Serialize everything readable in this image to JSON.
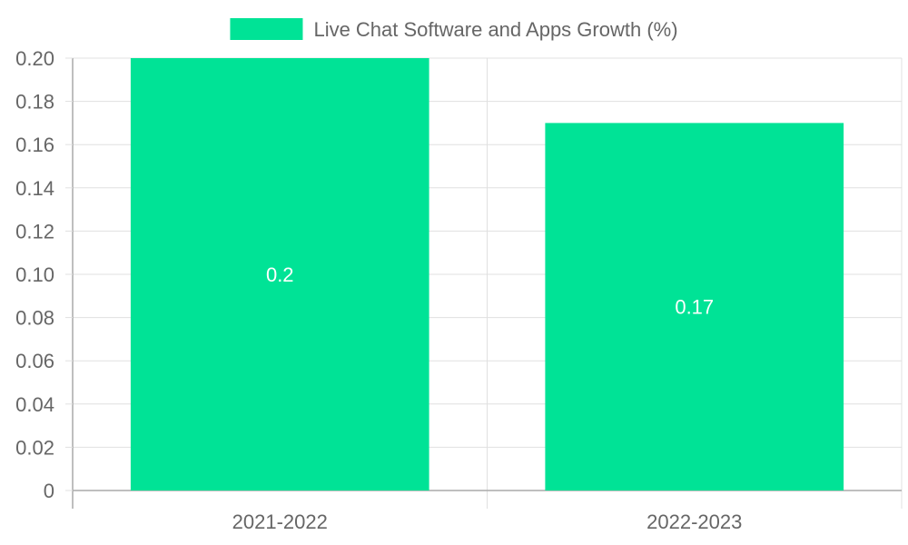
{
  "chart_data": {
    "type": "bar",
    "categories": [
      "2021-2022",
      "2022-2023"
    ],
    "series": [
      {
        "name": "Live Chat Software and Apps Growth (%)",
        "values": [
          0.2,
          0.17
        ],
        "color": "#00e396"
      }
    ],
    "data_labels": [
      "0.2",
      "0.17"
    ],
    "title": "",
    "xlabel": "",
    "ylabel": "",
    "ylim": [
      0,
      0.2
    ],
    "y_ticks": [
      "0",
      "0.02",
      "0.04",
      "0.06",
      "0.08",
      "0.10",
      "0.12",
      "0.14",
      "0.16",
      "0.18",
      "0.20"
    ],
    "y_tick_values": [
      0,
      0.02,
      0.04,
      0.06,
      0.08,
      0.1,
      0.12,
      0.14,
      0.16,
      0.18,
      0.2
    ],
    "grid": true,
    "legend_position": "top-center",
    "colors": {
      "grid": "#e0e0e0",
      "axis": "#aaaaaa",
      "tick_text": "#666666",
      "label_text": "#ffffff"
    }
  }
}
